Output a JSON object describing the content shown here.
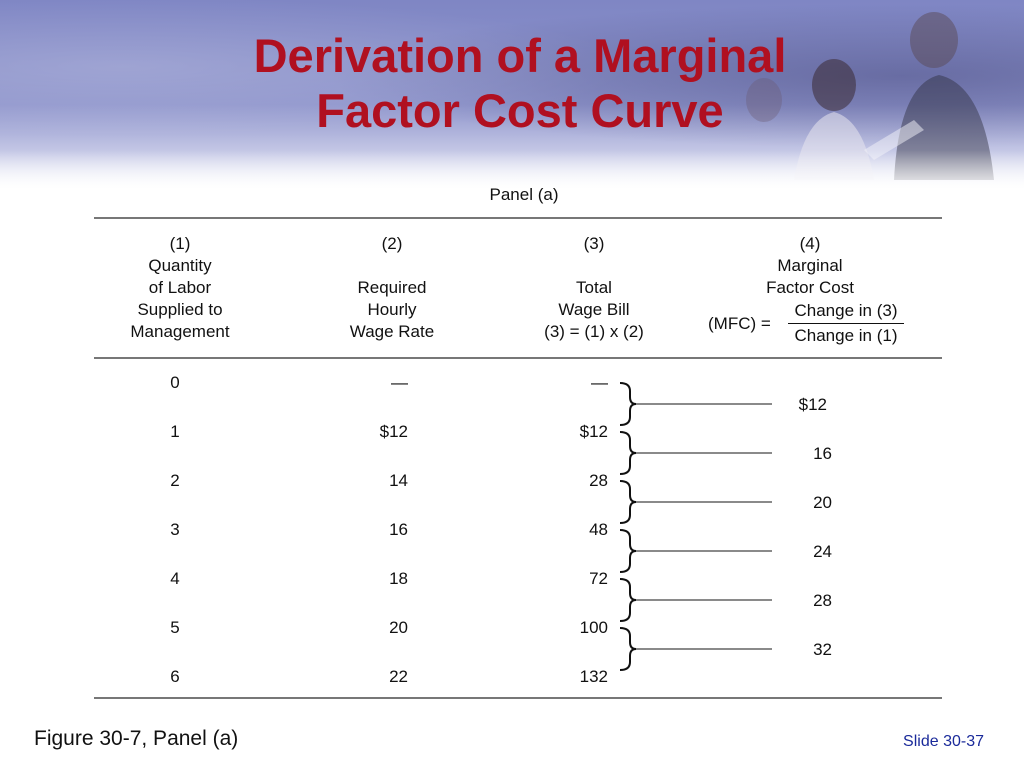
{
  "title": {
    "line1": "Derivation of a Marginal",
    "line2": "Factor Cost Curve"
  },
  "panel_label": "Panel (a)",
  "headers": {
    "col1": {
      "num": "(1)",
      "l1": "Quantity",
      "l2": "of Labor",
      "l3": "Supplied to",
      "l4": "Management"
    },
    "col2": {
      "num": "(2)",
      "l1": "Required",
      "l2": "Hourly",
      "l3": "Wage Rate"
    },
    "col3": {
      "num": "(3)",
      "l1": "Total",
      "l2": "Wage Bill",
      "l3": "(3) = (1) x (2)"
    },
    "col4": {
      "num": "(4)",
      "l1": "Marginal",
      "l2": "Factor Cost",
      "lhs": "(MFC) =",
      "numerator": "Change in (3)",
      "denominator": "Change in (1)"
    }
  },
  "rows": [
    {
      "q": "0",
      "w": "—",
      "t": "—"
    },
    {
      "q": "1",
      "w": "$12",
      "t": "$12"
    },
    {
      "q": "2",
      "w": "14",
      "t": "28"
    },
    {
      "q": "3",
      "w": "16",
      "t": "48"
    },
    {
      "q": "4",
      "w": "18",
      "t": "72"
    },
    {
      "q": "5",
      "w": "20",
      "t": "100"
    },
    {
      "q": "6",
      "w": "22",
      "t": "132"
    }
  ],
  "mfc": [
    "$12",
    "16",
    "20",
    "24",
    "28",
    "32"
  ],
  "caption": "Figure 30-7, Panel (a)",
  "slide_number": "Slide 30-37"
}
